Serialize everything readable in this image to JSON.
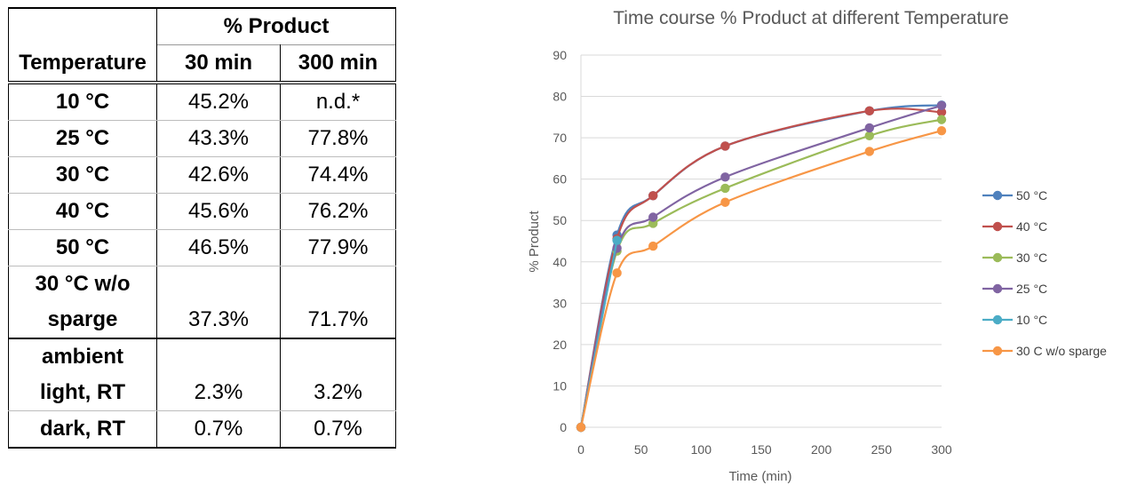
{
  "table": {
    "group_header": "% Product",
    "columns": [
      "Temperature",
      "30 min",
      "300 min"
    ],
    "rows": [
      {
        "label": [
          "10 °C"
        ],
        "v30": "45.2%",
        "v300": "n.d.*"
      },
      {
        "label": [
          "25 °C"
        ],
        "v30": "43.3%",
        "v300": "77.8%"
      },
      {
        "label": [
          "30 °C"
        ],
        "v30": "42.6%",
        "v300": "74.4%"
      },
      {
        "label": [
          "40 °C"
        ],
        "v30": "45.6%",
        "v300": "76.2%"
      },
      {
        "label": [
          "50 °C"
        ],
        "v30": "46.5%",
        "v300": "77.9%"
      },
      {
        "label": [
          "30 °C w/o",
          "sparge"
        ],
        "v30": "37.3%",
        "v300": "71.7%"
      },
      {
        "label": [
          "ambient",
          "light, RT"
        ],
        "v30": "2.3%",
        "v300": "3.2%"
      },
      {
        "label": [
          "dark, RT"
        ],
        "v30": "0.7%",
        "v300": "0.7%"
      }
    ]
  },
  "chart_data": {
    "type": "line",
    "title": "Time course % Product at different Temperature",
    "xlabel": "Time (min)",
    "ylabel": "% Product",
    "xlim": [
      0,
      300
    ],
    "ylim": [
      0,
      90
    ],
    "xticks": [
      0,
      50,
      100,
      150,
      200,
      250,
      300
    ],
    "yticks": [
      0,
      10,
      20,
      30,
      40,
      50,
      60,
      70,
      80,
      90
    ],
    "grid": true,
    "legend_position": "right",
    "series": [
      {
        "name": "50 °C",
        "color": "#4F81BD",
        "x": [
          0,
          30,
          60,
          120,
          240,
          300
        ],
        "y": [
          0,
          46.5,
          56.0,
          68.0,
          76.5,
          77.9
        ]
      },
      {
        "name": "40 °C",
        "color": "#C0504D",
        "x": [
          0,
          30,
          60,
          120,
          240,
          300
        ],
        "y": [
          0,
          45.6,
          56.0,
          68.0,
          76.5,
          76.2
        ]
      },
      {
        "name": "30 °C",
        "color": "#9BBB59",
        "x": [
          0,
          30,
          60,
          120,
          240,
          300
        ],
        "y": [
          0,
          42.6,
          49.3,
          57.8,
          70.5,
          74.4
        ]
      },
      {
        "name": "25 °C",
        "color": "#8064A2",
        "x": [
          0,
          30,
          60,
          120,
          240,
          300
        ],
        "y": [
          0,
          43.3,
          50.8,
          60.5,
          72.4,
          77.8
        ]
      },
      {
        "name": "10 °C",
        "color": "#4BACC6",
        "x": [
          0,
          30
        ],
        "y": [
          0,
          45.2
        ]
      },
      {
        "name": "30 C w/o sparge",
        "color": "#F79646",
        "x": [
          0,
          30,
          60,
          120,
          240,
          300
        ],
        "y": [
          0,
          37.3,
          43.8,
          54.4,
          66.7,
          71.7
        ]
      }
    ]
  }
}
